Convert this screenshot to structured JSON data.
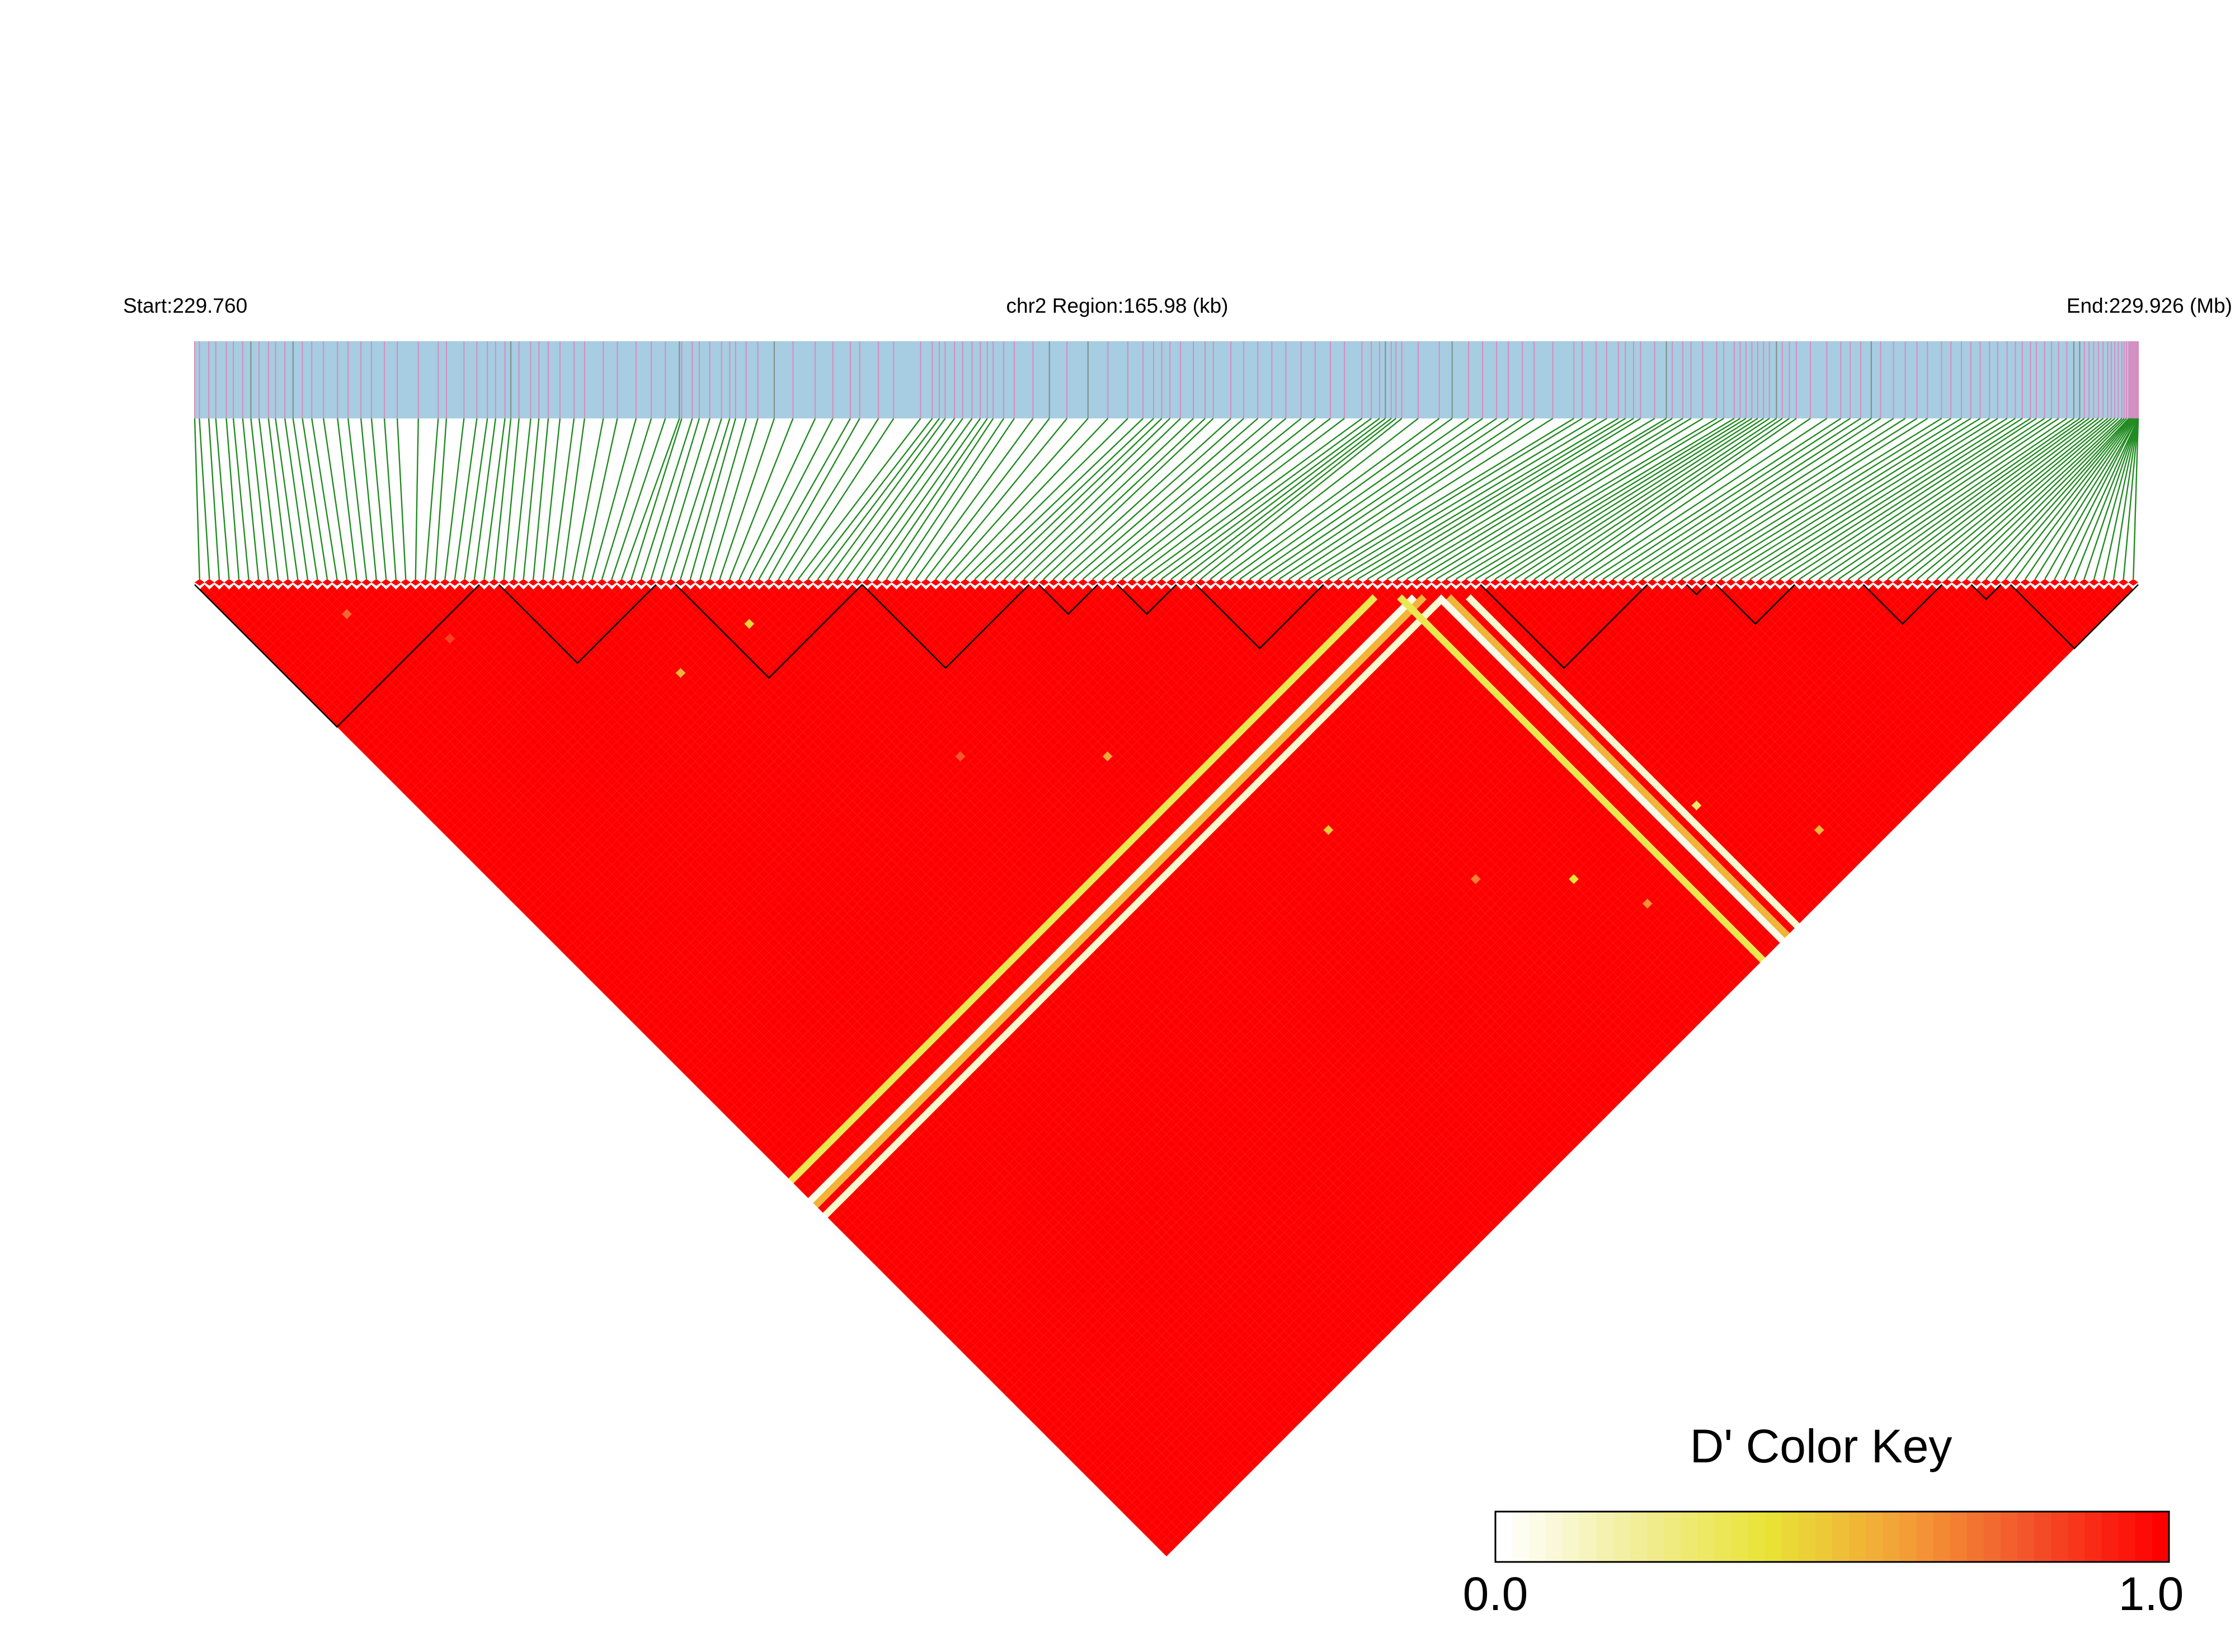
{
  "chart_data": {
    "type": "heatmap",
    "subtype": "linkage-disequilibrium-triangle",
    "title": "chr2 Region:165.98 (kb)",
    "start_label": "Start:229.760",
    "end_label": "End:229.926 (Mb)",
    "region_start_mb": 229.76,
    "region_end_mb": 229.926,
    "region_length_kb": 165.98,
    "chromosome": "chr2",
    "snp_count": 198,
    "metric": "D'",
    "color_key": {
      "title": "D' Color Key",
      "min_label": "0.0",
      "max_label": "1.0",
      "range": [
        0.0,
        1.0
      ],
      "gradient": [
        "#ffffff",
        "#f2ee9a",
        "#e8e436",
        "#f4a338",
        "#f3542b",
        "#ff0000"
      ]
    },
    "dominant_value": 1.0,
    "snp_positions_mb": [
      229.76,
      229.7604,
      229.7612,
      229.7618,
      229.7627,
      229.7633,
      229.7641,
      229.7648,
      229.7655,
      229.7663,
      229.7669,
      229.7677,
      229.7684,
      229.7692,
      229.77,
      229.771,
      229.7722,
      229.7731,
      229.7742,
      229.7751,
      229.7762,
      229.7773,
      229.7791,
      229.7808,
      229.7815,
      229.783,
      229.7841,
      229.785,
      229.7857,
      229.7865,
      229.787,
      229.7877,
      229.7887,
      229.7894,
      229.7902,
      229.7912,
      229.7924,
      229.7933,
      229.7949,
      229.7961,
      229.7977,
      229.799,
      229.8002,
      229.8014,
      229.8016,
      229.8025,
      229.8031,
      229.804,
      229.805,
      229.8057,
      229.8062,
      229.8071,
      229.8081,
      229.8095,
      229.8111,
      229.813,
      229.8145,
      229.816,
      229.8168,
      229.8184,
      229.8197,
      229.822,
      229.823,
      229.8236,
      229.8241,
      229.8249,
      229.8256,
      229.8264,
      229.8271,
      229.8277,
      229.8282,
      229.8291,
      229.83,
      229.8316,
      229.833,
      229.8345,
      229.8363,
      229.838,
      229.8397,
      229.841,
      229.8419,
      229.8426,
      229.8433,
      229.8442,
      229.8453,
      229.8463,
      229.847,
      229.8485,
      229.8496,
      229.8508,
      229.852,
      229.8532,
      229.8545,
      229.8557,
      229.857,
      229.8582,
      229.8597,
      229.8605,
      229.8612,
      229.8617,
      229.8622,
      229.8626,
      229.8631,
      229.8645,
      229.8663,
      229.8674,
      229.8688,
      229.87,
      229.8712,
      229.8722,
      229.8734,
      229.8744,
      229.876,
      229.8778,
      229.8785,
      229.8797,
      229.8806,
      229.8816,
      229.8822,
      229.8829,
      229.8835,
      229.8847,
      229.8857,
      229.8862,
      229.8871,
      229.8878,
      229.8888,
      229.89,
      229.8906,
      229.8915,
      229.892,
      229.8925,
      229.893,
      229.8935,
      229.894,
      229.8945,
      229.8951,
      229.8956,
      229.8962,
      229.8968,
      229.898,
      229.8994,
      229.9006,
      229.9014,
      229.9023,
      229.9032,
      229.904,
      229.9051,
      229.9061,
      229.9071,
      229.908,
      229.9092,
      229.91,
      229.9109,
      229.9117,
      229.9125,
      229.9133,
      229.914,
      229.9148,
      229.9155,
      229.9161,
      229.9168,
      229.9173,
      229.918,
      229.9186,
      229.9192,
      229.9199,
      229.9205,
      229.921,
      229.9214,
      229.9218,
      229.9222,
      229.9226,
      229.923,
      229.9234,
      229.9237,
      229.924,
      229.9243,
      229.9246,
      229.9248,
      229.925,
      229.9252,
      229.9253,
      229.9254,
      229.9255,
      229.9256,
      229.9257,
      229.9258,
      229.9259,
      229.9259,
      229.926,
      229.926,
      229.926,
      229.926,
      229.926,
      229.926,
      229.926,
      229.926
    ],
    "haplotype_blocks_snp_ranges": [
      [
        0,
        28
      ],
      [
        31,
        46
      ],
      [
        49,
        67
      ],
      [
        68,
        84
      ],
      [
        86,
        91
      ],
      [
        94,
        99
      ],
      [
        102,
        114
      ],
      [
        131,
        147
      ],
      [
        152,
        153
      ],
      [
        155,
        162
      ],
      [
        170,
        177
      ],
      [
        181,
        183
      ],
      [
        185,
        197
      ]
    ],
    "low_dprime_bands": [
      {
        "snp": 121,
        "d_prime": 0.35
      },
      {
        "snp": 125,
        "d_prime": 0.05
      },
      {
        "snp": 126,
        "d_prime": 0.55
      },
      {
        "snp": 128,
        "d_prime": 0.1
      }
    ],
    "scattered_low_pairs": [
      {
        "i": 12,
        "j": 18,
        "d_prime": 0.75
      },
      {
        "i": 20,
        "j": 31,
        "d_prime": 0.85
      },
      {
        "i": 40,
        "j": 58,
        "d_prime": 0.55
      },
      {
        "i": 52,
        "j": 60,
        "d_prime": 0.45
      },
      {
        "i": 60,
        "j": 95,
        "d_prime": 0.8
      },
      {
        "i": 75,
        "j": 110,
        "d_prime": 0.6
      },
      {
        "i": 90,
        "j": 140,
        "d_prime": 0.5
      },
      {
        "i": 100,
        "j": 160,
        "d_prime": 0.7
      },
      {
        "i": 110,
        "j": 170,
        "d_prime": 0.4
      },
      {
        "i": 115,
        "j": 180,
        "d_prime": 0.65
      },
      {
        "i": 130,
        "j": 175,
        "d_prime": 0.3
      },
      {
        "i": 140,
        "j": 190,
        "d_prime": 0.55
      }
    ]
  },
  "colors": {
    "gene_track": "#a6cde1",
    "snp_tick_pink": "#d98bc1",
    "snp_tick_gray": "#7f8c86",
    "connector_green": "#228b22",
    "block_outline": "#000000",
    "cell_max": "#ff0000"
  }
}
